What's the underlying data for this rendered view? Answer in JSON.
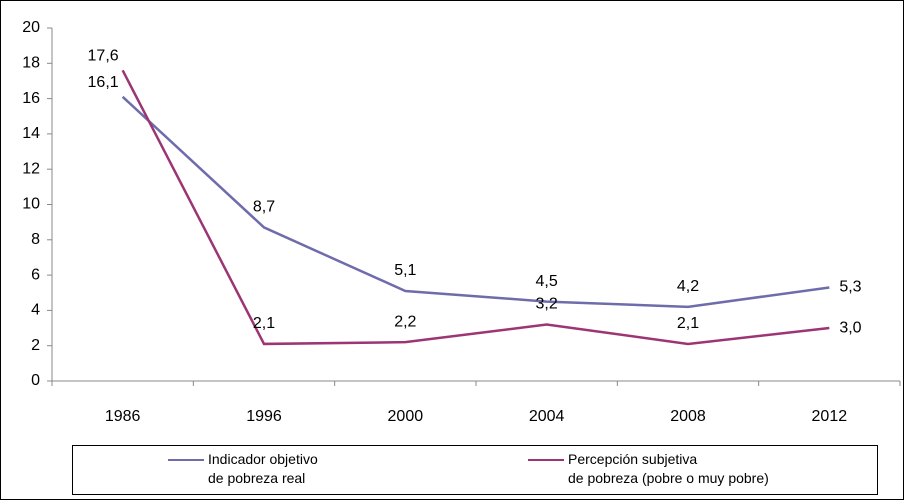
{
  "chart_data": {
    "type": "line",
    "categories": [
      "1986",
      "1996",
      "2000",
      "2004",
      "2008",
      "2012"
    ],
    "series": [
      {
        "name": "Indicador objetivo\nde pobreza real",
        "color": "#6e6cab",
        "values": [
          16.1,
          8.7,
          5.1,
          4.5,
          4.2,
          5.3
        ],
        "value_labels": [
          "16,1",
          "8,7",
          "5,1",
          "4,5",
          "4,2",
          "5,3"
        ]
      },
      {
        "name": "Percepción subjetiva\nde pobreza (pobre o muy pobre)",
        "color": "#9c3574",
        "values": [
          17.6,
          2.1,
          2.2,
          3.2,
          2.1,
          3.0
        ],
        "value_labels": [
          "17,6",
          "2,1",
          "2,2",
          "3,2",
          "2,1",
          "3,0"
        ]
      }
    ],
    "ylim": [
      0,
      20
    ],
    "yticks": [
      0,
      2,
      4,
      6,
      8,
      10,
      12,
      14,
      16,
      18,
      20
    ],
    "grid": false,
    "legend": "bottom"
  }
}
